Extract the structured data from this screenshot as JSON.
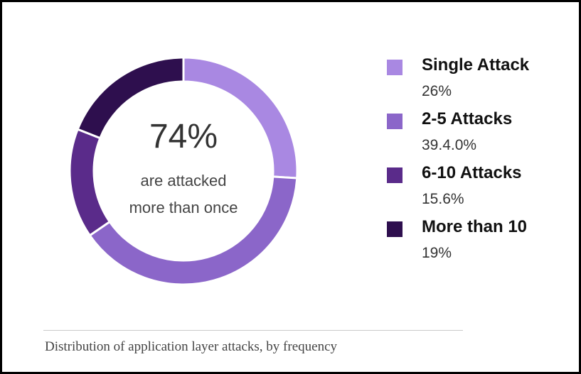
{
  "chart_data": {
    "type": "pie",
    "donut": true,
    "categories": [
      "Single Attack",
      "2-5 Attacks",
      "6-10 Attacks",
      "More than 10"
    ],
    "values": [
      26,
      39.4,
      15.6,
      19
    ],
    "value_labels": [
      "26%",
      "39.4.0%",
      "15.6%",
      "19%"
    ],
    "colors": [
      "#a988e2",
      "#8b66c9",
      "#5a2b8a",
      "#2e0f4e"
    ],
    "start_angle_deg": 0,
    "direction": "clockwise",
    "legend_position": "right",
    "center_text": {
      "value": "74%",
      "line1": "are attacked",
      "line2": "more than once"
    },
    "caption": "Distribution of application layer attacks, by frequency"
  }
}
